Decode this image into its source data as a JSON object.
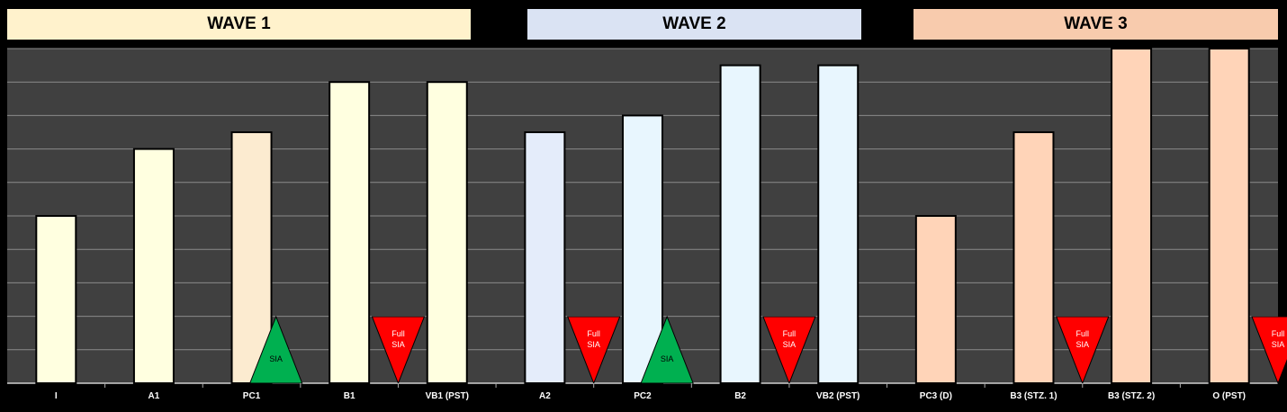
{
  "waves": [
    {
      "label": "WAVE 1",
      "color": "#FFF2CC"
    },
    {
      "label": "WAVE 2",
      "color": "#DAE3F3"
    },
    {
      "label": "WAVE 3",
      "color": "#F8CBAD"
    }
  ],
  "chart_data": {
    "type": "bar",
    "categories": [
      "I",
      "A1",
      "PC1",
      "B1",
      "VB1 (PST)",
      "A2",
      "PC2",
      "B2",
      "VB2 (PST)",
      "PC3 (D)",
      "B3 (STZ. 1)",
      "B3 (STZ. 2)",
      "O (PST)"
    ],
    "values": [
      5,
      7,
      7.5,
      9,
      9,
      7.5,
      8,
      9.5,
      9.5,
      5,
      7.5,
      10,
      10
    ],
    "ylim": [
      0,
      10
    ],
    "bar_colors": [
      "#FFFFE0",
      "#FFFFE0",
      "#FCEBD0",
      "#FFFFE0",
      "#FFFFE0",
      "#E4ECFA",
      "#E8F6FE",
      "#E8F6FE",
      "#E8F6FE",
      "#FFD4B8",
      "#FFD4B8",
      "#FFD4B8",
      "#FFD4B8"
    ],
    "plot_background": "#404040",
    "grid": true,
    "markers": [
      {
        "category": "PC1",
        "type": "up",
        "color": "#00B050",
        "label": "SIA"
      },
      {
        "category": "B1",
        "type": "down",
        "color": "#FF0000",
        "label": "Full SIA"
      },
      {
        "category": "A2",
        "type": "down",
        "color": "#FF0000",
        "label": "Full SIA"
      },
      {
        "category": "PC2",
        "type": "up",
        "color": "#00B050",
        "label": "SIA"
      },
      {
        "category": "B2",
        "type": "down",
        "color": "#FF0000",
        "label": "Full SIA"
      },
      {
        "category": "B3 (STZ. 1)",
        "type": "down",
        "color": "#FF0000",
        "label": "Full SIA"
      },
      {
        "category": "O (PST)",
        "type": "down",
        "color": "#FF0000",
        "label": "Full SIA"
      }
    ]
  }
}
